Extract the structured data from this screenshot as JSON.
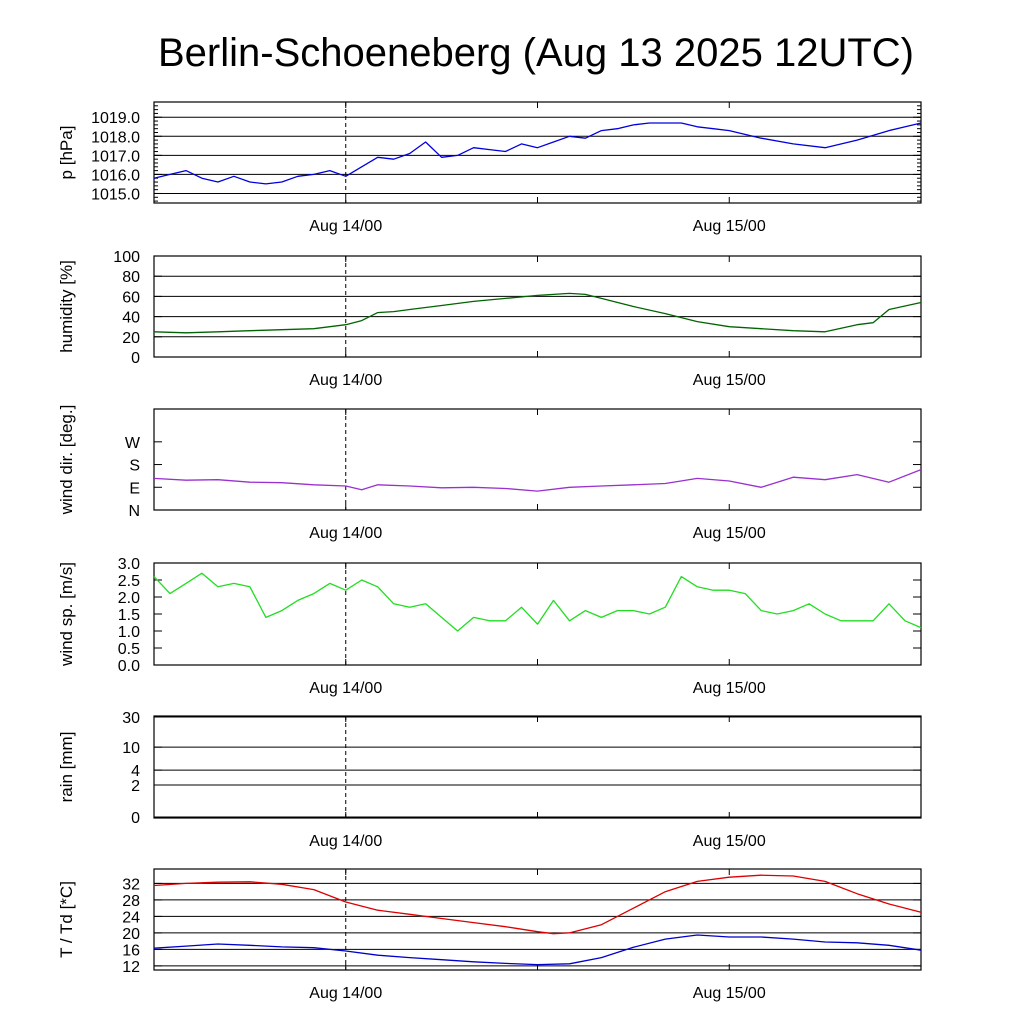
{
  "title": "Berlin-Schoeneberg (Aug 13 2025 12UTC)",
  "chart_data": [
    {
      "type": "line",
      "ylabel": "p [hPa]",
      "x_ticks": [
        "Aug 14/00",
        "Aug 15/00"
      ],
      "ylim": [
        1014.5,
        1019.8
      ],
      "y_ticks": [
        {
          "v": 1015.0,
          "label": "1015.0"
        },
        {
          "v": 1016.0,
          "label": "1016.0"
        },
        {
          "v": 1017.0,
          "label": "1017.0"
        },
        {
          "v": 1018.0,
          "label": "1018.0"
        },
        {
          "v": 1019.0,
          "label": "1019.0"
        }
      ],
      "grid": true,
      "series": [
        {
          "color": "#0000dd",
          "x": [
            12,
            13,
            14,
            15,
            16,
            17,
            18,
            19,
            20,
            21,
            22,
            23,
            24,
            25,
            26,
            27,
            28,
            29,
            30,
            31,
            32,
            33,
            34,
            35,
            36,
            37,
            38,
            39,
            40,
            41,
            42,
            43,
            44,
            45,
            46,
            47,
            48,
            50,
            52,
            54,
            56,
            58,
            60
          ],
          "y": [
            1015.8,
            1016.0,
            1016.2,
            1015.8,
            1015.6,
            1015.9,
            1015.6,
            1015.5,
            1015.6,
            1015.9,
            1016.0,
            1016.2,
            1015.9,
            1016.4,
            1016.9,
            1016.8,
            1017.1,
            1017.7,
            1016.9,
            1017.0,
            1017.4,
            1017.3,
            1017.2,
            1017.6,
            1017.4,
            1017.7,
            1018.0,
            1017.9,
            1018.3,
            1018.4,
            1018.6,
            1018.7,
            1018.7,
            1018.7,
            1018.5,
            1018.4,
            1018.3,
            1017.9,
            1017.6,
            1017.4,
            1017.8,
            1018.3,
            1018.7
          ]
        }
      ]
    },
    {
      "type": "line",
      "ylabel": "humidity [%]",
      "x_ticks": [
        "Aug 14/00",
        "Aug 15/00"
      ],
      "ylim": [
        0,
        100
      ],
      "y_ticks": [
        {
          "v": 0,
          "label": "0"
        },
        {
          "v": 20,
          "label": "20"
        },
        {
          "v": 40,
          "label": "40"
        },
        {
          "v": 60,
          "label": "60"
        },
        {
          "v": 80,
          "label": "80"
        },
        {
          "v": 100,
          "label": "100"
        }
      ],
      "grid": true,
      "series": [
        {
          "color": "#006400",
          "x": [
            12,
            14,
            16,
            18,
            20,
            22,
            24,
            25,
            26,
            27,
            28,
            30,
            32,
            34,
            36,
            38,
            39,
            40,
            42,
            44,
            46,
            48,
            50,
            52,
            54,
            56,
            57,
            58,
            60
          ],
          "y": [
            25,
            24,
            25,
            26,
            27,
            28,
            32,
            36,
            44,
            45,
            47,
            51,
            55,
            58,
            61,
            63,
            62,
            58,
            50,
            43,
            35,
            30,
            28,
            26,
            25,
            32,
            34,
            47,
            54
          ]
        }
      ]
    },
    {
      "type": "line",
      "ylabel": "wind dir. [deg.]",
      "x_ticks": [
        "Aug 14/00",
        "Aug 15/00"
      ],
      "ylim": [
        0,
        400
      ],
      "y_ticks": [
        {
          "v": 0,
          "label": "N"
        },
        {
          "v": 90,
          "label": "E"
        },
        {
          "v": 180,
          "label": "S"
        },
        {
          "v": 270,
          "label": "W"
        }
      ],
      "grid": false,
      "series": [
        {
          "color": "#9a30d0",
          "x": [
            12,
            14,
            16,
            18,
            20,
            22,
            24,
            25,
            26,
            28,
            30,
            32,
            34,
            36,
            38,
            40,
            42,
            44,
            46,
            48,
            50,
            52,
            54,
            56,
            58,
            60
          ],
          "y": [
            125,
            118,
            120,
            110,
            108,
            100,
            95,
            80,
            100,
            95,
            88,
            90,
            85,
            75,
            90,
            95,
            100,
            105,
            125,
            115,
            90,
            130,
            120,
            140,
            110,
            160
          ]
        }
      ]
    },
    {
      "type": "line",
      "ylabel": "wind sp. [m/s]",
      "x_ticks": [
        "Aug 14/00",
        "Aug 15/00"
      ],
      "ylim": [
        0,
        3.0
      ],
      "y_ticks": [
        {
          "v": 0.0,
          "label": "0.0"
        },
        {
          "v": 0.5,
          "label": "0.5"
        },
        {
          "v": 1.0,
          "label": "1.0"
        },
        {
          "v": 1.5,
          "label": "1.5"
        },
        {
          "v": 2.0,
          "label": "2.0"
        },
        {
          "v": 2.5,
          "label": "2.5"
        },
        {
          "v": 3.0,
          "label": "3.0"
        }
      ],
      "grid": false,
      "series": [
        {
          "color": "#22dd22",
          "x": [
            12,
            13,
            14,
            15,
            16,
            17,
            18,
            19,
            20,
            21,
            22,
            23,
            24,
            25,
            26,
            27,
            28,
            29,
            30,
            31,
            32,
            33,
            34,
            35,
            36,
            37,
            38,
            39,
            40,
            41,
            42,
            43,
            44,
            45,
            46,
            47,
            48,
            49,
            50,
            51,
            52,
            53,
            54,
            55,
            56,
            57,
            58,
            59,
            60
          ],
          "y": [
            2.6,
            2.1,
            2.4,
            2.7,
            2.3,
            2.4,
            2.3,
            1.4,
            1.6,
            1.9,
            2.1,
            2.4,
            2.2,
            2.5,
            2.3,
            1.8,
            1.7,
            1.8,
            1.4,
            1.0,
            1.4,
            1.3,
            1.3,
            1.7,
            1.2,
            1.9,
            1.3,
            1.6,
            1.4,
            1.6,
            1.6,
            1.5,
            1.7,
            2.6,
            2.3,
            2.2,
            2.2,
            2.1,
            1.6,
            1.5,
            1.6,
            1.8,
            1.5,
            1.3,
            1.3,
            1.3,
            1.8,
            1.3,
            1.1
          ]
        }
      ]
    },
    {
      "type": "line",
      "ylabel": "rain [mm]",
      "x_ticks": [
        "Aug 14/00",
        "Aug 15/00"
      ],
      "scale": "log",
      "y_ticks": [
        {
          "v": 0,
          "label": "0"
        },
        {
          "v": 2,
          "label": "2"
        },
        {
          "v": 4,
          "label": "4"
        },
        {
          "v": 10,
          "label": "10"
        },
        {
          "v": 30,
          "label": "30"
        }
      ],
      "grid": true,
      "series": []
    },
    {
      "type": "line",
      "ylabel": "T / Td [*C]",
      "x_ticks": [
        "Aug 14/00",
        "Aug 15/00"
      ],
      "ylim": [
        11,
        35.5
      ],
      "y_ticks": [
        {
          "v": 12,
          "label": "12"
        },
        {
          "v": 16,
          "label": "16"
        },
        {
          "v": 20,
          "label": "20"
        },
        {
          "v": 24,
          "label": "24"
        },
        {
          "v": 28,
          "label": "28"
        },
        {
          "v": 32,
          "label": "32"
        }
      ],
      "grid": true,
      "series": [
        {
          "color": "#dd0000",
          "x": [
            12,
            14,
            16,
            18,
            20,
            22,
            24,
            26,
            28,
            30,
            32,
            34,
            36,
            37,
            38,
            40,
            42,
            44,
            46,
            48,
            50,
            52,
            54,
            56,
            58,
            60
          ],
          "y": [
            31.5,
            32.0,
            32.3,
            32.4,
            31.8,
            30.5,
            27.5,
            25.5,
            24.5,
            23.5,
            22.5,
            21.5,
            20.3,
            19.8,
            20.0,
            22.0,
            26.0,
            30.0,
            32.5,
            33.5,
            34.0,
            33.8,
            32.5,
            29.5,
            27.0,
            25.0
          ]
        },
        {
          "color": "#0000cc",
          "x": [
            12,
            14,
            16,
            18,
            20,
            22,
            24,
            26,
            28,
            30,
            32,
            34,
            36,
            38,
            40,
            42,
            44,
            46,
            48,
            50,
            52,
            54,
            56,
            58,
            60
          ],
          "y": [
            16.3,
            16.8,
            17.3,
            17.0,
            16.6,
            16.4,
            15.6,
            14.6,
            14.0,
            13.5,
            13.0,
            12.6,
            12.3,
            12.5,
            14.0,
            16.5,
            18.5,
            19.5,
            19.0,
            19.0,
            18.5,
            17.8,
            17.6,
            17.0,
            15.8
          ]
        }
      ]
    }
  ]
}
